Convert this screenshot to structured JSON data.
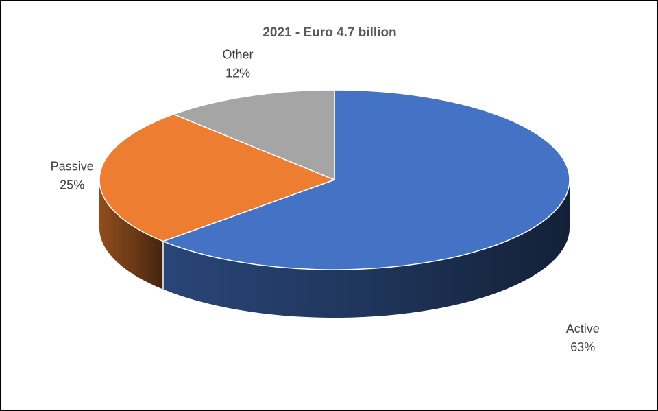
{
  "chart_data": {
    "type": "pie",
    "title": "2021 - Euro 4.7 billion",
    "categories": [
      "Active",
      "Passive",
      "Other"
    ],
    "values": [
      63,
      25,
      12
    ],
    "value_labels": [
      "63%",
      "25%",
      "12%"
    ],
    "colors": [
      "#4472C4",
      "#ED7D31",
      "#A5A5A5"
    ],
    "style": "3d",
    "legend": "none"
  }
}
